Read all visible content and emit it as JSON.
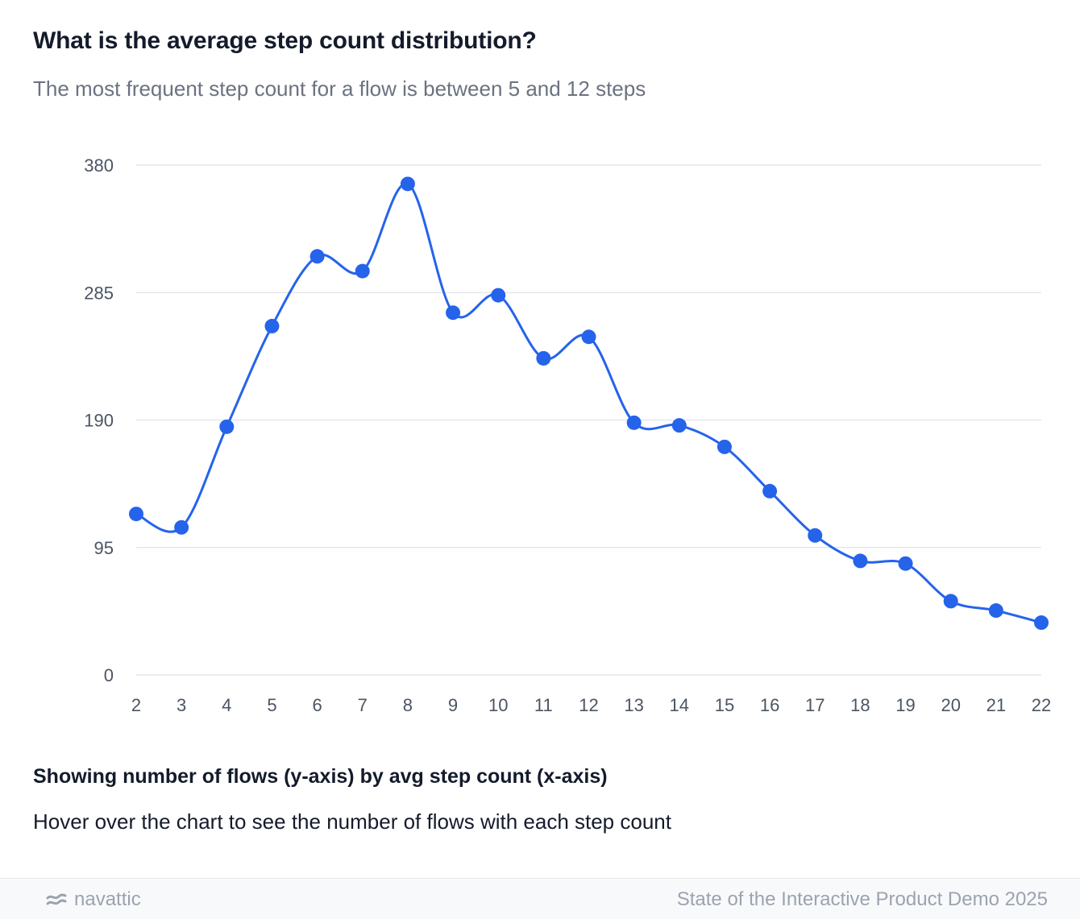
{
  "header": {
    "title": "What is the average step count distribution?",
    "subtitle": "The most frequent step count for a flow is between 5 and 12 steps"
  },
  "caption": {
    "heading": "Showing number of flows (y-axis) by avg step count (x-axis)",
    "hint": "Hover over the chart to see the number of flows with each step count"
  },
  "footer": {
    "brand": "navattic",
    "brand_icon": "navattic-logo-icon",
    "source": "State of the Interactive Product Demo 2025"
  },
  "colors": {
    "series": "#2563eb",
    "grid": "#e5e7eb",
    "tick": "#4b5563"
  },
  "chart_data": {
    "type": "line",
    "title": "",
    "xlabel": "",
    "ylabel": "",
    "x": [
      2,
      3,
      4,
      5,
      6,
      7,
      8,
      9,
      10,
      11,
      12,
      13,
      14,
      15,
      16,
      17,
      18,
      19,
      20,
      21,
      22
    ],
    "series": [
      {
        "values": [
          120,
          110,
          185,
          260,
          312,
          301,
          366,
          270,
          283,
          236,
          252,
          188,
          186,
          170,
          137,
          104,
          85,
          83,
          55,
          48,
          39
        ]
      }
    ],
    "ylim": [
      0,
      380
    ],
    "yticks": [
      0,
      95,
      190,
      285,
      380
    ],
    "grid": true,
    "smooth": true,
    "markers": true,
    "legend": "none"
  }
}
